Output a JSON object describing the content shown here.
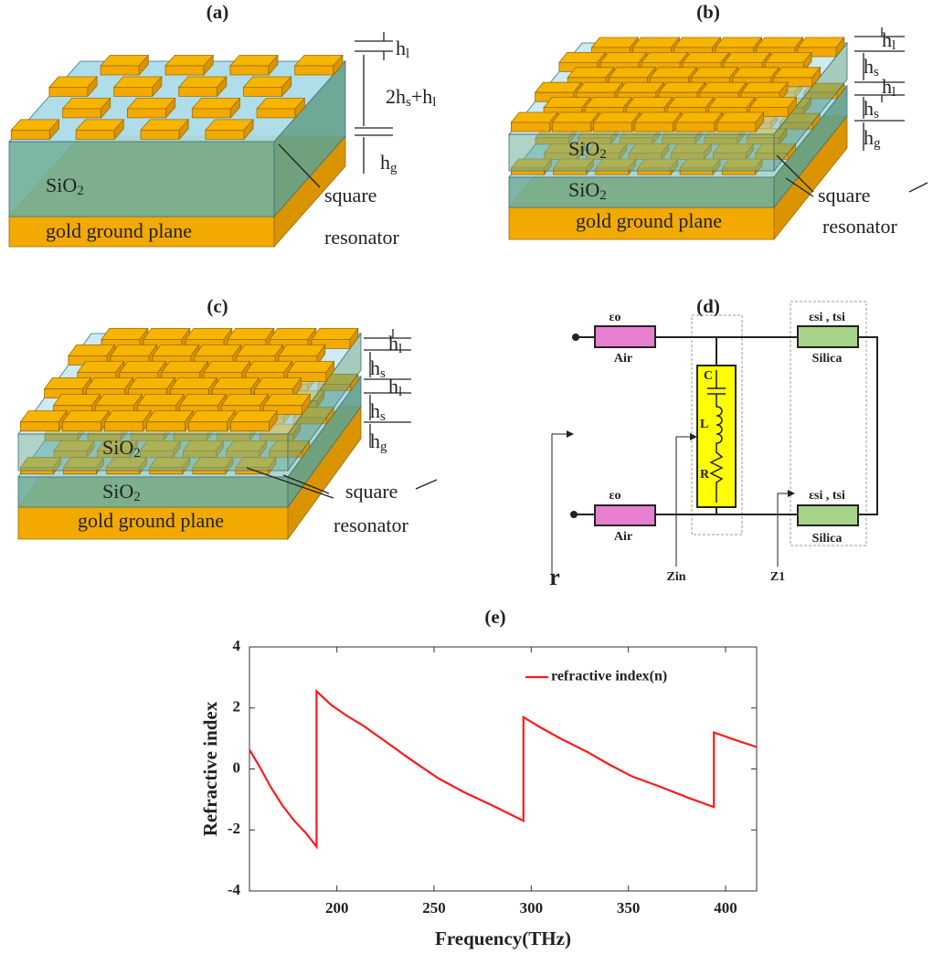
{
  "panels": {
    "a": {
      "label": "(a)",
      "h_l": [
        "h",
        "l"
      ],
      "total": [
        "2h",
        "s",
        "+h",
        "l"
      ],
      "h_g": [
        "h",
        "g"
      ],
      "sio2": [
        "SiO",
        "2"
      ],
      "ground": "gold ground plane",
      "resonator_1": "square",
      "resonator_2": "resonator"
    },
    "b": {
      "label": "(b)",
      "h_l": [
        "h",
        "l"
      ],
      "h_s": [
        "h",
        "s"
      ],
      "h_l2": [
        "h",
        "l"
      ],
      "h_s2": [
        "h",
        "s"
      ],
      "h_g": [
        "h",
        "g"
      ],
      "sio2_top": [
        "SiO",
        "2"
      ],
      "sio2_bottom": [
        "SiO",
        "2"
      ],
      "ground": "gold ground plane",
      "resonator_1": "square",
      "resonator_2": "resonator"
    },
    "c": {
      "label": "(c)",
      "h_l": [
        "h",
        "l"
      ],
      "h_s": [
        "h",
        "s"
      ],
      "h_l2": [
        "h",
        "l"
      ],
      "h_s2": [
        "h",
        "s"
      ],
      "h_g": [
        "h",
        "g"
      ],
      "sio2_top": [
        "SiO",
        "2"
      ],
      "sio2_bottom": [
        "SiO",
        "2"
      ],
      "ground": "gold ground plane",
      "resonator_1": "square",
      "resonator_2": "resonator"
    },
    "d": {
      "label": "(d)",
      "top": {
        "eps": "εo",
        "air": "Air",
        "eps_si": "εsi , tsi",
        "silica": "Silica"
      },
      "bottom": {
        "eps": "εo",
        "air": "Air",
        "eps_si": "εsi , tsi",
        "silica": "Silica"
      },
      "c": "C",
      "l": "L",
      "r_el": "R",
      "zin": "Zin",
      "z1": "Z1",
      "gamma": "r"
    }
  },
  "chart_data": {
    "type": "line",
    "title": "(e)",
    "xlabel": "Frequency(THz)",
    "ylabel": "Refractive index",
    "x": [
      155,
      160,
      166,
      172,
      178,
      184,
      189.5,
      189.5,
      197,
      205,
      214,
      225,
      237,
      252,
      265,
      280,
      296,
      296,
      305,
      315,
      329,
      340,
      352,
      365,
      381,
      394,
      394,
      405,
      416
    ],
    "series": [
      {
        "name": "refractive index(n)",
        "color": "#ff1a1a",
        "values": [
          0.63,
          0.1,
          -0.6,
          -1.2,
          -1.7,
          -2.1,
          -2.55,
          2.55,
          2.1,
          1.75,
          1.4,
          0.9,
          0.35,
          -0.3,
          -0.75,
          -1.2,
          -1.7,
          1.7,
          1.35,
          1.0,
          0.55,
          0.15,
          -0.25,
          -0.55,
          -0.95,
          -1.25,
          1.2,
          0.95,
          0.72
        ]
      }
    ],
    "xlim": [
      155,
      416
    ],
    "ylim": [
      -4,
      4
    ],
    "xticks": [
      200,
      250,
      300,
      350,
      400
    ],
    "yticks": [
      -4,
      -2,
      0,
      2,
      4
    ],
    "legend": "upper right"
  }
}
